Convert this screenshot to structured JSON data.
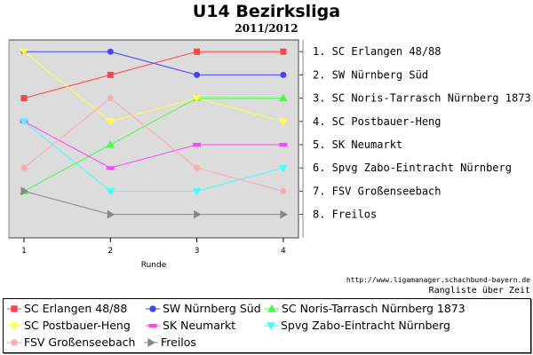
{
  "chart_data": {
    "type": "line",
    "title": "U14 Bezirksliga",
    "subtitle": "2011/2012",
    "xlabel": "Runde",
    "ylabel": "",
    "x": [
      1,
      2,
      3,
      4
    ],
    "xticks": [
      "1",
      "2",
      "3",
      "4"
    ],
    "ylim": [
      0,
      9
    ],
    "y_inverted": true,
    "grid": false,
    "legend_position": "bottom",
    "rank_labels": [
      "1. SC Erlangen 48/88",
      "2. SW Nürnberg Süd",
      "3. SC Noris-Tarrasch Nürnberg 1873",
      "4. SC Postbauer-Heng",
      "5. SK Neumarkt",
      "6. Spvg Zabo-Eintracht Nürnberg",
      "7. FSV Großenseebach",
      "8. Freilos"
    ],
    "series": [
      {
        "name": "SC Erlangen 48/88",
        "color": "#ff4444",
        "marker": "square",
        "x": [
          1,
          2,
          3,
          4
        ],
        "values": [
          3,
          2,
          1,
          1
        ]
      },
      {
        "name": "SW Nürnberg Süd",
        "color": "#4444ff",
        "marker": "circle",
        "x": [
          1,
          2,
          3,
          4
        ],
        "values": [
          1,
          1,
          2,
          2
        ]
      },
      {
        "name": "SC Noris-Tarrasch Nürnberg 1873",
        "color": "#44ff44",
        "marker": "triangle-up",
        "x": [
          1,
          2,
          3,
          4
        ],
        "values": [
          7,
          5,
          3,
          3
        ]
      },
      {
        "name": "SC Postbauer-Heng",
        "color": "#ffff44",
        "marker": "triangle-down",
        "x": [
          1,
          2,
          3,
          4
        ],
        "values": [
          1,
          4,
          3,
          4
        ]
      },
      {
        "name": "SK Neumarkt",
        "color": "#ff44ff",
        "marker": "dash",
        "x": [
          1,
          2,
          3,
          4
        ],
        "values": [
          4,
          6,
          5,
          5
        ]
      },
      {
        "name": "Spvg Zabo-Eintracht Nürnberg",
        "color": "#44ffff",
        "marker": "triangle-down",
        "x": [
          1,
          2,
          3,
          4
        ],
        "values": [
          4,
          7,
          7,
          6
        ]
      },
      {
        "name": "FSV Großenseebach",
        "color": "#ffaaaa",
        "marker": "circle",
        "x": [
          1,
          2,
          3,
          4
        ],
        "values": [
          6,
          3,
          6,
          7
        ]
      },
      {
        "name": "Freilos",
        "color": "#888888",
        "marker": "triangle-right",
        "x": [
          1,
          2,
          3,
          4
        ],
        "values": [
          7,
          8,
          8,
          8
        ]
      }
    ]
  },
  "credit_url": "http://www.ligamanager.schachbund-bayern.de",
  "credit_text": "Rangliste über Zeit"
}
